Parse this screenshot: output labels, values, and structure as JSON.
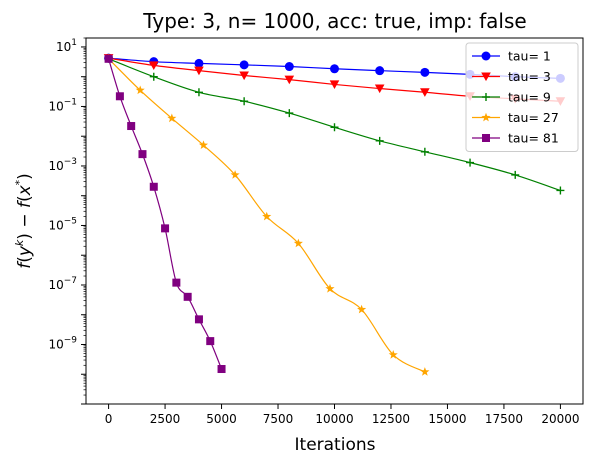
{
  "chart_data": {
    "type": "line",
    "title": "Type: 3, n= 1000, acc: true, imp: false",
    "xlabel": "Iterations",
    "ylabel": "f(y^k) - f(x^*)",
    "yscale": "log",
    "xlim": [
      -1000,
      21000
    ],
    "ylim": [
      1e-11,
      20
    ],
    "xticks": [
      0,
      2500,
      5000,
      7500,
      10000,
      12500,
      15000,
      17500,
      20000
    ],
    "xtick_labels": [
      "0",
      "2500",
      "5000",
      "7500",
      "10000",
      "12500",
      "15000",
      "17500",
      "20000"
    ],
    "yticks": [
      10,
      0.1,
      0.001,
      1e-05,
      1e-07,
      1e-09
    ],
    "ytick_labels": [
      {
        "base": "10",
        "exp": "1"
      },
      {
        "base": "10",
        "exp": "−1"
      },
      {
        "base": "10",
        "exp": "−3"
      },
      {
        "base": "10",
        "exp": "−5"
      },
      {
        "base": "10",
        "exp": "−7"
      },
      {
        "base": "10",
        "exp": "−9"
      }
    ],
    "grid": false,
    "legend_position": "upper right",
    "series": [
      {
        "name": "tau= 1",
        "color": "#0000ff",
        "marker": "circle",
        "x": [
          0,
          2000,
          4000,
          6000,
          8000,
          10000,
          12000,
          14000,
          16000,
          18000,
          20000
        ],
        "y": [
          4.2,
          3.2,
          2.8,
          2.5,
          2.2,
          1.85,
          1.6,
          1.4,
          1.2,
          1.0,
          0.88
        ]
      },
      {
        "name": "tau= 3",
        "color": "#ff0000",
        "marker": "triangle-down",
        "x": [
          0,
          2000,
          4000,
          6000,
          8000,
          10000,
          12000,
          14000,
          16000,
          18000,
          20000
        ],
        "y": [
          4.2,
          2.4,
          1.6,
          1.1,
          0.8,
          0.55,
          0.4,
          0.3,
          0.22,
          0.18,
          0.15
        ]
      },
      {
        "name": "tau= 9",
        "color": "#008000",
        "marker": "plus",
        "x": [
          0,
          2000,
          4000,
          6000,
          8000,
          10000,
          12000,
          14000,
          16000,
          18000,
          20000
        ],
        "y": [
          4.0,
          1.0,
          0.3,
          0.15,
          0.06,
          0.02,
          0.007,
          0.003,
          0.0013,
          0.0005,
          0.00015
        ]
      },
      {
        "name": "tau= 27",
        "color": "#ffa500",
        "marker": "star",
        "x": [
          0,
          1400,
          2800,
          4200,
          5600,
          7000,
          8400,
          9800,
          11200,
          12600,
          14000
        ],
        "y": [
          4.0,
          0.35,
          0.04,
          0.005,
          0.0005,
          2e-05,
          2.5e-06,
          7.5e-08,
          1.5e-08,
          4.5e-10,
          1.2e-10
        ]
      },
      {
        "name": "tau= 81",
        "color": "#800080",
        "marker": "square",
        "x": [
          0,
          500,
          1000,
          1500,
          2000,
          2500,
          3000,
          3500,
          4000,
          4500,
          5000
        ],
        "y": [
          4.0,
          0.22,
          0.022,
          0.0025,
          0.0002,
          8e-06,
          1.2e-07,
          4e-08,
          7e-09,
          1.3e-09,
          1.5e-10
        ]
      }
    ]
  }
}
